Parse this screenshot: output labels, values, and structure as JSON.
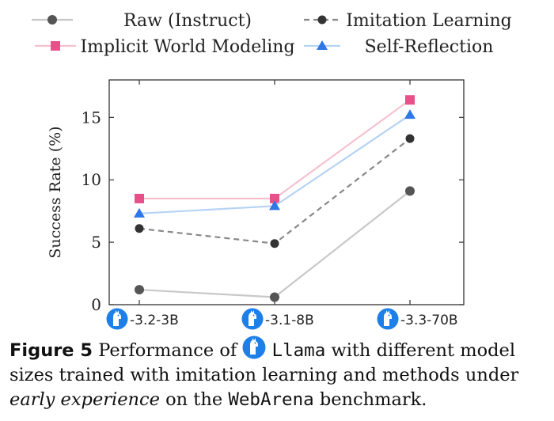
{
  "chart_data": {
    "type": "line",
    "categories": [
      "-3.2-3B",
      "-3.1-8B",
      "-3.3-70B"
    ],
    "ylabel": "Success Rate (%)",
    "ylim": [
      0,
      18
    ],
    "yticks": [
      0,
      5,
      10,
      15
    ],
    "legend_position": "top",
    "grid": false,
    "series": [
      {
        "name": "Raw (Instruct)",
        "values": [
          1.2,
          0.6,
          9.1
        ],
        "color": "#c8c8c8",
        "marker": "circle",
        "marker_color": "#555555",
        "dashed": false
      },
      {
        "name": "Imitation Learning",
        "values": [
          6.1,
          4.9,
          13.3
        ],
        "color": "#888888",
        "marker": "circle",
        "marker_color": "#333333",
        "dashed": true
      },
      {
        "name": "Implicit World Modeling",
        "values": [
          8.5,
          8.5,
          16.4
        ],
        "color": "#f6c1cf",
        "marker": "square",
        "marker_color": "#e8508a",
        "dashed": false
      },
      {
        "name": "Self-Reflection",
        "values": [
          7.3,
          7.9,
          15.2
        ],
        "color": "#b7d3f4",
        "marker": "triangle",
        "marker_color": "#2e78e6",
        "dashed": false
      }
    ]
  },
  "caption": {
    "label": "Figure 5",
    "text_1": "Performance of",
    "model": "Llama",
    "text_2": "with different model sizes trained with imitation learning and methods under",
    "italic": "early experience",
    "text_3": "on the",
    "benchmark": "WebArena",
    "text_4": "benchmark."
  },
  "colors": {
    "llama_icon": "#1d7fe8"
  },
  "icons": {
    "model_logo": "llama-icon"
  }
}
